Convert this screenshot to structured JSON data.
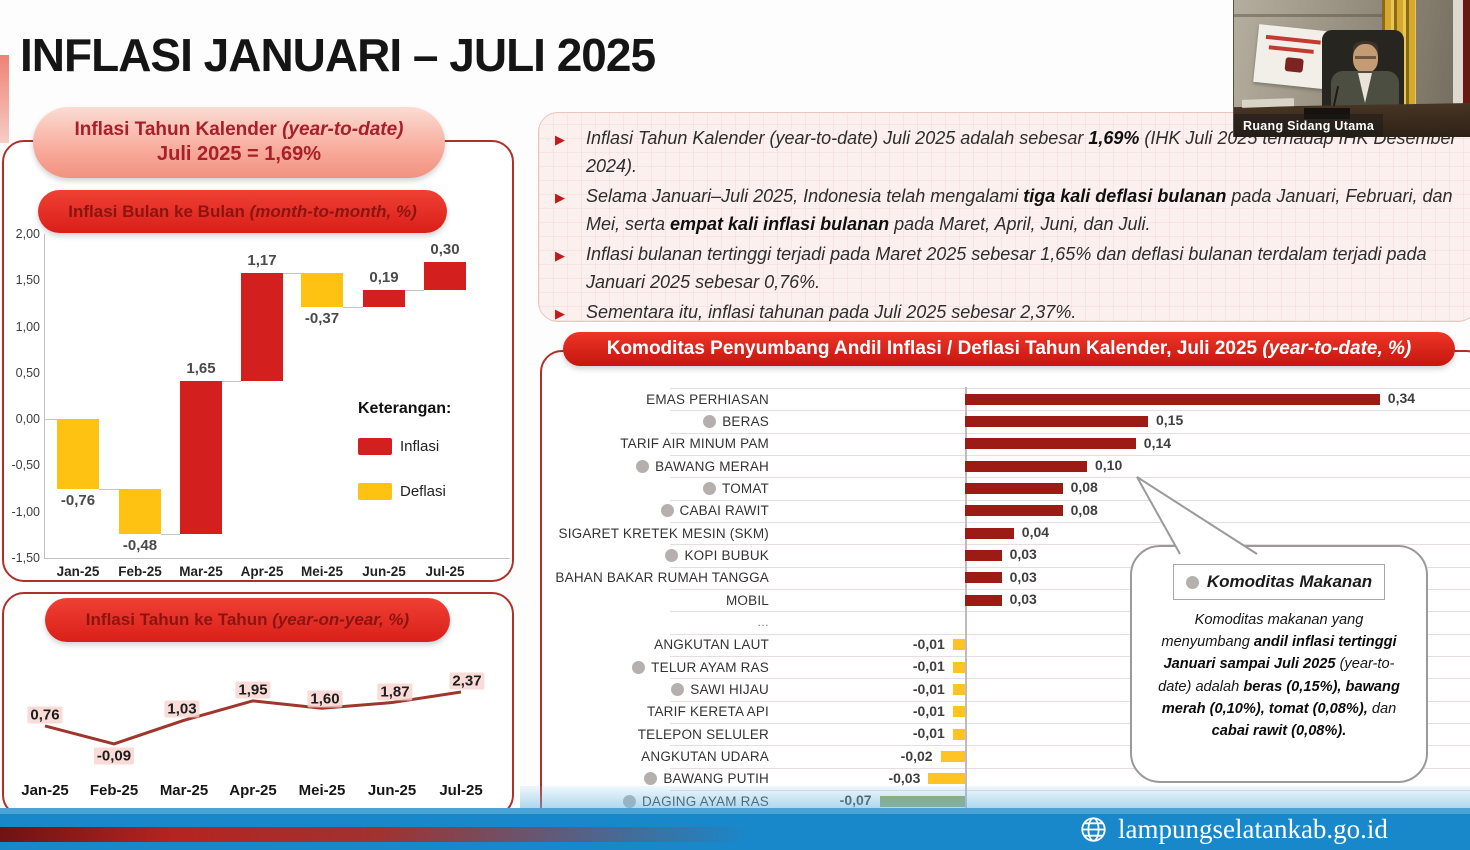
{
  "title": "INFLASI JANUARI – JULI 2025",
  "ytd_banner": {
    "line1": "Inflasi Tahun Kalender (year-to-date)",
    "line2": "Juli 2025 = 1,69%"
  },
  "bullets": [
    {
      "segments": [
        {
          "t": "Inflasi Tahun Kalender (year-to-date) Juli 2025 adalah sebesar ",
          "b": false
        },
        {
          "t": "1,69%",
          "b": true
        },
        {
          "t": " (IHK Juli 2025 terhadap IHK Desember 2024).",
          "b": false
        }
      ]
    },
    {
      "segments": [
        {
          "t": "Selama Januari–Juli 2025, Indonesia telah mengalami ",
          "b": false
        },
        {
          "t": "tiga kali deflasi bulanan",
          "b": true
        },
        {
          "t": " pada Januari, Februari, dan Mei, serta ",
          "b": false
        },
        {
          "t": "empat kali inflasi bulanan",
          "b": true
        },
        {
          "t": " pada Maret, April, Juni, dan Juli.",
          "b": false
        }
      ]
    },
    {
      "segments": [
        {
          "t": "Inflasi bulanan tertinggi terjadi pada Maret 2025 sebesar 1,65% dan deflasi bulanan terdalam terjadi pada Januari 2025 sebesar 0,76%.",
          "b": false
        }
      ]
    },
    {
      "segments": [
        {
          "t": "Sementara itu, inflasi tahunan pada Juli 2025 sebesar 2,37%.",
          "b": false
        }
      ]
    }
  ],
  "chart_data": [
    {
      "id": "mtm",
      "type": "bar",
      "subtype": "waterfall",
      "title": "Inflasi Bulan ke Bulan (month-to-month, %)",
      "categories": [
        "Jan-25",
        "Feb-25",
        "Mar-25",
        "Apr-25",
        "Mei-25",
        "Jun-25",
        "Jul-25"
      ],
      "values": [
        -0.76,
        -0.48,
        1.65,
        1.17,
        -0.37,
        0.19,
        0.3
      ],
      "value_labels": [
        "-0,76",
        "-0,48",
        "1,65",
        "1,17",
        "-0,37",
        "0,19",
        "0,30"
      ],
      "y_ticks": [
        "2,00",
        "1,50",
        "1,00",
        "0,50",
        "0,00",
        "-0,50",
        "-1,00",
        "-1,50"
      ],
      "ylim": [
        -1.5,
        2.0
      ],
      "grid": false,
      "legend": {
        "title": "Keterangan:",
        "items": [
          {
            "label": "Inflasi",
            "color": "#d41f1f"
          },
          {
            "label": "Deflasi",
            "color": "#fdc212"
          }
        ]
      }
    },
    {
      "id": "yoy",
      "type": "line",
      "title": "Inflasi Tahun ke Tahun (year-on-year, %)",
      "categories": [
        "Jan-25",
        "Feb-25",
        "Mar-25",
        "Apr-25",
        "Mei-25",
        "Jun-25",
        "Jul-25"
      ],
      "values": [
        0.76,
        -0.09,
        1.03,
        1.95,
        1.6,
        1.87,
        2.37
      ],
      "value_labels": [
        "0,76",
        "-0,09",
        "1,03",
        "1,95",
        "1,60",
        "1,87",
        "2,37"
      ],
      "line_color": "#9e362c"
    },
    {
      "id": "commodity",
      "type": "bar",
      "orientation": "horizontal",
      "title": "Komoditas Penyumbang Andil Inflasi / Deflasi Tahun Kalender, Juli 2025 (year-to-date, %)",
      "colors": {
        "inflasi": "#9c1b15",
        "deflasi": "#ffc324",
        "food_marker": "#b5b0ae"
      },
      "items": [
        {
          "label": "EMAS PERHIASAN",
          "value": 0.34,
          "value_label": "0,34",
          "food": false
        },
        {
          "label": "BERAS",
          "value": 0.15,
          "value_label": "0,15",
          "food": true
        },
        {
          "label": "TARIF AIR MINUM PAM",
          "value": 0.14,
          "value_label": "0,14",
          "food": false
        },
        {
          "label": "BAWANG MERAH",
          "value": 0.1,
          "value_label": "0,10",
          "food": true
        },
        {
          "label": "TOMAT",
          "value": 0.08,
          "value_label": "0,08",
          "food": true
        },
        {
          "label": "CABAI RAWIT",
          "value": 0.08,
          "value_label": "0,08",
          "food": true
        },
        {
          "label": "SIGARET KRETEK MESIN (SKM)",
          "value": 0.04,
          "value_label": "0,04",
          "food": false
        },
        {
          "label": "KOPI BUBUK",
          "value": 0.03,
          "value_label": "0,03",
          "food": true
        },
        {
          "label": "BAHAN BAKAR RUMAH TANGGA",
          "value": 0.03,
          "value_label": "0,03",
          "food": false
        },
        {
          "label": "MOBIL",
          "value": 0.03,
          "value_label": "0,03",
          "food": false
        },
        {
          "label": "…",
          "ellipsis": true
        },
        {
          "label": "ANGKUTAN LAUT",
          "value": -0.01,
          "value_label": "-0,01",
          "food": false
        },
        {
          "label": "TELUR AYAM RAS",
          "value": -0.01,
          "value_label": "-0,01",
          "food": true
        },
        {
          "label": "SAWI HIJAU",
          "value": -0.01,
          "value_label": "-0,01",
          "food": true
        },
        {
          "label": "TARIF KERETA API",
          "value": -0.01,
          "value_label": "-0,01",
          "food": false
        },
        {
          "label": "TELEPON SELULER",
          "value": -0.01,
          "value_label": "-0,01",
          "food": false
        },
        {
          "label": "ANGKUTAN UDARA",
          "value": -0.02,
          "value_label": "-0,02",
          "food": false
        },
        {
          "label": "BAWANG PUTIH",
          "value": -0.03,
          "value_label": "-0,03",
          "food": true
        },
        {
          "label": "DAGING AYAM RAS",
          "value": -0.07,
          "value_label": "-0,07",
          "food": true,
          "bar_color": "#93a75f"
        }
      ]
    }
  ],
  "callout": {
    "header": "Komoditas Makanan",
    "body_segments": [
      {
        "t": "Komoditas makanan yang menyumbang ",
        "b": false
      },
      {
        "t": "andil inflasi tertinggi Januari sampai Juli 2025",
        "b": true
      },
      {
        "t": " (year-to-date) adalah ",
        "b": false
      },
      {
        "t": "beras (0,15%), bawang merah (0,10%), tomat (0,08%),",
        "b": true
      },
      {
        "t": " dan ",
        "b": false
      },
      {
        "t": "cabai rawit (0,08%).",
        "b": true
      }
    ]
  },
  "webcam": {
    "label": "Ruang Sidang Utama"
  },
  "footer": {
    "site": "lampungselatankab.go.id"
  }
}
